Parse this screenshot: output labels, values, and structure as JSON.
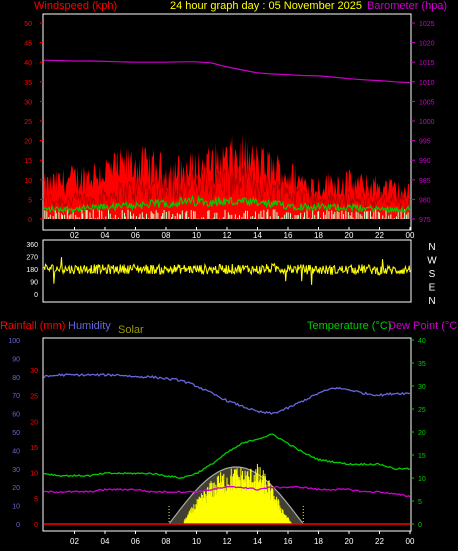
{
  "colors": {
    "background": "#000000",
    "frame": "#ffffff",
    "windspeed": "#ff0000",
    "windgust_fill": "#ff0000",
    "wind_avg": "#00cc00",
    "wind_light": "#ccffcc",
    "barometer": "#cc00cc",
    "direction": "#ffff00",
    "rainfall": "#ff0000",
    "humidity": "#6666dd",
    "solar": "#ffff00",
    "solar_label": "#999900",
    "solar_envelope": "#aaaaaa",
    "temperature": "#00cc00",
    "dewpoint": "#cc00cc",
    "title": "#ffff00"
  },
  "chart_data": [
    {
      "type": "line",
      "title": "24 hour graph day : 05 November 2025",
      "left_axis_label": "Windspeed (kph)",
      "right_axis_label": "Barometer (hpa)",
      "left_ticks": [
        "0",
        "5",
        "10",
        "15",
        "20",
        "25",
        "30",
        "35",
        "40",
        "45",
        "50"
      ],
      "right_ticks": [
        "975",
        "980",
        "985",
        "990",
        "995",
        "1000",
        "1005",
        "1010",
        "1015",
        "1020",
        "1025"
      ],
      "x_ticks": [
        "02",
        "04",
        "06",
        "08",
        "10",
        "12",
        "14",
        "16",
        "18",
        "20",
        "22",
        "00"
      ],
      "xlim": [
        0,
        24
      ],
      "ylim_left": [
        0,
        50
      ],
      "ylim_right": [
        975,
        1025
      ],
      "grid": false,
      "series": [
        {
          "name": "Barometer (hpa)",
          "axis": "right",
          "x": [
            0,
            1,
            2,
            3,
            4,
            5,
            6,
            7,
            8,
            9,
            10,
            11,
            12,
            13,
            14,
            15,
            16,
            17,
            18,
            19,
            20,
            21,
            22,
            23,
            24
          ],
          "y": [
            1015.5,
            1015.4,
            1015.3,
            1015.3,
            1015.2,
            1015.1,
            1015.0,
            1015.0,
            1015.0,
            1015.1,
            1015.1,
            1014.8,
            1013.8,
            1013.0,
            1012.3,
            1012.0,
            1011.8,
            1011.6,
            1011.5,
            1011.2,
            1010.8,
            1010.5,
            1010.3,
            1010.0,
            1009.8
          ]
        },
        {
          "name": "Windspeed (kph)",
          "axis": "left",
          "x": [
            0,
            1,
            2,
            3,
            4,
            5,
            6,
            7,
            8,
            9,
            10,
            11,
            12,
            13,
            14,
            15,
            16,
            17,
            18,
            19,
            20,
            21,
            22,
            23,
            24
          ],
          "y": [
            5,
            5,
            5,
            5,
            6,
            7,
            8,
            8,
            9,
            9,
            9,
            10,
            10,
            10,
            9,
            8,
            7,
            6,
            5,
            5,
            5,
            5,
            5,
            5,
            4
          ]
        },
        {
          "name": "Wind gust",
          "axis": "left",
          "x": [
            0,
            1,
            2,
            3,
            4,
            5,
            6,
            7,
            8,
            9,
            10,
            11,
            12,
            13,
            14,
            15,
            16,
            17,
            18,
            19,
            20,
            21,
            22,
            23,
            24
          ],
          "y": [
            9,
            10,
            11,
            12,
            13,
            14,
            15,
            14,
            13,
            13,
            14,
            15,
            16,
            17,
            15,
            14,
            12,
            10,
            9,
            10,
            10,
            9,
            9,
            8,
            7
          ]
        },
        {
          "name": "Wind average",
          "axis": "left",
          "x": [
            0,
            2,
            4,
            6,
            8,
            10,
            12,
            14,
            16,
            18,
            20,
            22,
            24
          ],
          "y": [
            2.5,
            2.5,
            3,
            3.5,
            4,
            4.5,
            4.5,
            4,
            3.5,
            3,
            3,
            2.5,
            2.5
          ]
        }
      ]
    },
    {
      "type": "line",
      "right_labels": [
        "N",
        "W",
        "S",
        "E",
        "N"
      ],
      "left_ticks": [
        "360",
        "270",
        "180",
        "90",
        "0"
      ],
      "x_ticks": [
        "02",
        "04",
        "06",
        "08",
        "10",
        "12",
        "14",
        "16",
        "18",
        "20",
        "22",
        "00"
      ],
      "ylim": [
        0,
        360
      ],
      "series": [
        {
          "name": "Wind direction",
          "x": [
            0,
            1,
            2,
            3,
            4,
            5,
            6,
            7,
            8,
            9,
            10,
            11,
            12,
            13,
            14,
            15,
            16,
            17,
            18,
            19,
            20,
            21,
            22,
            23,
            24
          ],
          "y": [
            185,
            180,
            178,
            182,
            176,
            180,
            183,
            178,
            175,
            180,
            178,
            176,
            180,
            182,
            175,
            185,
            180,
            178,
            175,
            172,
            176,
            180,
            170,
            172,
            175
          ]
        }
      ]
    },
    {
      "type": "line",
      "left_outer_label": "Rainfall (mm)",
      "left_inner_label": "Humidity",
      "solar_label": "Solar",
      "right_labels": [
        "Temperature (°C)",
        "Dew Point (°C)"
      ],
      "humidity_ticks": [
        "0",
        "10",
        "20",
        "30",
        "40",
        "50",
        "60",
        "70",
        "80",
        "90",
        "100"
      ],
      "rain_ticks": [
        "0",
        "5",
        "10",
        "15",
        "20",
        "25",
        "30"
      ],
      "temp_ticks": [
        "0",
        "5",
        "10",
        "15",
        "20",
        "25",
        "30",
        "35",
        "40"
      ],
      "x_ticks": [
        "02",
        "04",
        "06",
        "08",
        "10",
        "12",
        "14",
        "16",
        "18",
        "20",
        "22",
        "00"
      ],
      "xlim": [
        0,
        24
      ],
      "ylim_humidity": [
        0,
        100
      ],
      "ylim_rain": [
        0,
        30
      ],
      "ylim_temp": [
        0,
        40
      ],
      "series": [
        {
          "name": "Humidity",
          "axis": "humidity",
          "x": [
            0,
            1,
            2,
            3,
            4,
            5,
            6,
            7,
            8,
            9,
            10,
            11,
            12,
            13,
            14,
            15,
            16,
            17,
            18,
            19,
            20,
            21,
            22,
            23,
            24
          ],
          "y": [
            80,
            81,
            81,
            81,
            81,
            81,
            80,
            80,
            79,
            78,
            75,
            71,
            67,
            64,
            61,
            60,
            63,
            67,
            71,
            74,
            73,
            71,
            70,
            71,
            71
          ]
        },
        {
          "name": "Temperature (°C)",
          "axis": "temp",
          "x": [
            0,
            1,
            2,
            3,
            4,
            5,
            6,
            7,
            8,
            9,
            10,
            11,
            12,
            13,
            14,
            15,
            16,
            17,
            18,
            19,
            20,
            21,
            22,
            23,
            24
          ],
          "y": [
            11,
            10.5,
            10.5,
            10.5,
            11,
            11,
            11,
            11,
            10.5,
            10,
            11,
            13,
            15.5,
            17.5,
            18.5,
            19.5,
            17.5,
            15.5,
            14,
            13.5,
            13,
            13,
            13,
            12,
            12
          ]
        },
        {
          "name": "Dew Point (°C)",
          "axis": "temp",
          "x": [
            0,
            1,
            2,
            3,
            4,
            5,
            6,
            7,
            8,
            9,
            10,
            11,
            12,
            13,
            14,
            15,
            16,
            17,
            18,
            19,
            20,
            21,
            22,
            23,
            24
          ],
          "y": [
            7,
            7,
            7,
            7,
            7.5,
            7.5,
            7.5,
            7,
            7,
            7,
            7,
            7.5,
            8,
            8,
            7.5,
            8,
            8,
            8,
            7.5,
            7.5,
            7.5,
            7,
            7,
            6.5,
            6
          ]
        },
        {
          "name": "Solar",
          "axis": "humidity",
          "x": [
            9.2,
            9.8,
            10.4,
            11,
            11.6,
            12.2,
            12.8,
            13.4,
            14,
            14.6,
            15.2,
            15.8,
            16.2
          ],
          "y": [
            2,
            10,
            16,
            22,
            26,
            28,
            29,
            28,
            30,
            25,
            15,
            6,
            1
          ]
        }
      ]
    }
  ]
}
